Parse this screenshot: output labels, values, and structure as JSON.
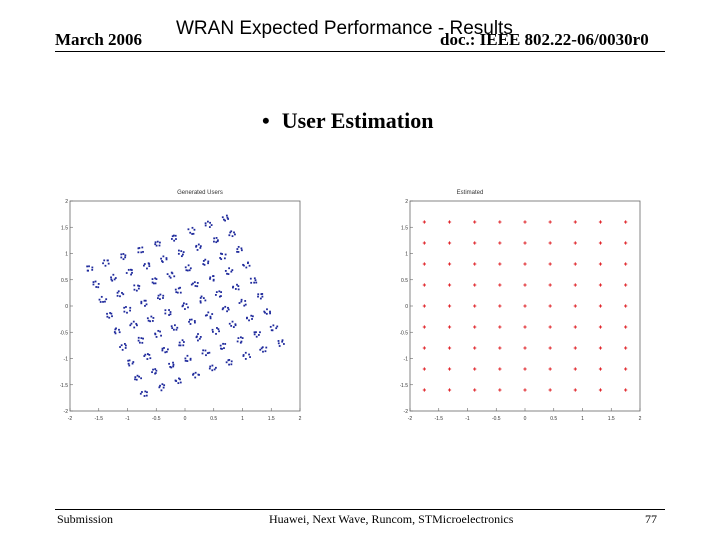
{
  "header": {
    "date": "March 2006",
    "title": "WRAN Expected Performance - Results",
    "doc_id": "doc.: IEEE 802.22-06/0030r0"
  },
  "slide": {
    "bullet": "User Estimation"
  },
  "plots": [
    {
      "title": "Generated Users",
      "color": "#1f2a9c",
      "xticks": [
        "-2",
        "-1.5",
        "-1",
        "-0.5",
        "0",
        "0.5",
        "1",
        "1.5",
        "2"
      ],
      "yticks": [
        "2",
        "1.5",
        "1",
        "0.5",
        "0",
        "-0.5",
        "-1",
        "-1.5",
        "-2"
      ]
    },
    {
      "title": "Estimated",
      "color": "#e0242a",
      "xticks": [
        "-2",
        "-1.5",
        "-1",
        "-0.5",
        "0",
        "0.5",
        "1",
        "1.5",
        "2"
      ],
      "yticks": [
        "2",
        "1.5",
        "1",
        "0.5",
        "0",
        "-0.5",
        "-1",
        "-1.5",
        "-2"
      ]
    }
  ],
  "footer": {
    "left": "Submission",
    "center": "Huawei, Next Wave, Runcom, STMicroelectronics",
    "page": "77"
  }
}
